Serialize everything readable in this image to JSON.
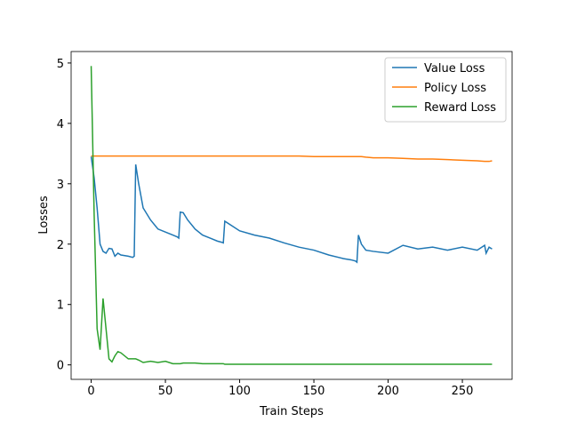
{
  "chart_data": {
    "type": "line",
    "x_label": "Train Steps",
    "y_label": "Losses",
    "x": [
      0,
      2,
      4,
      6,
      8,
      10,
      12,
      14,
      16,
      18,
      20,
      25,
      28,
      29,
      30,
      32,
      35,
      40,
      45,
      50,
      55,
      58,
      59,
      60,
      62,
      65,
      70,
      75,
      80,
      85,
      88,
      89,
      90,
      95,
      100,
      110,
      120,
      130,
      140,
      150,
      160,
      170,
      175,
      178,
      179,
      180,
      182,
      185,
      190,
      200,
      210,
      220,
      230,
      240,
      250,
      260,
      265,
      266,
      268,
      270
    ],
    "series": [
      {
        "name": "Value Loss",
        "color": "#1f77b4",
        "values": [
          3.45,
          3.1,
          2.6,
          2.0,
          1.88,
          1.85,
          1.93,
          1.92,
          1.8,
          1.85,
          1.82,
          1.8,
          1.78,
          1.8,
          3.32,
          3.0,
          2.6,
          2.4,
          2.25,
          2.2,
          2.15,
          2.12,
          2.1,
          2.53,
          2.52,
          2.4,
          2.25,
          2.15,
          2.1,
          2.05,
          2.03,
          2.02,
          2.38,
          2.3,
          2.22,
          2.15,
          2.1,
          2.02,
          1.95,
          1.9,
          1.82,
          1.76,
          1.74,
          1.72,
          1.7,
          2.15,
          2.0,
          1.9,
          1.88,
          1.85,
          1.98,
          1.92,
          1.95,
          1.9,
          1.95,
          1.9,
          1.98,
          1.85,
          1.95,
          1.92
        ]
      },
      {
        "name": "Policy Loss",
        "color": "#ff7f0e",
        "values": [
          3.46,
          3.46,
          3.46,
          3.46,
          3.46,
          3.46,
          3.46,
          3.46,
          3.46,
          3.46,
          3.46,
          3.46,
          3.46,
          3.46,
          3.46,
          3.46,
          3.46,
          3.46,
          3.46,
          3.46,
          3.46,
          3.46,
          3.46,
          3.46,
          3.46,
          3.46,
          3.46,
          3.46,
          3.46,
          3.46,
          3.46,
          3.46,
          3.46,
          3.46,
          3.46,
          3.46,
          3.46,
          3.46,
          3.46,
          3.45,
          3.45,
          3.45,
          3.45,
          3.45,
          3.45,
          3.45,
          3.45,
          3.44,
          3.43,
          3.43,
          3.42,
          3.41,
          3.41,
          3.4,
          3.39,
          3.38,
          3.37,
          3.37,
          3.37,
          3.38
        ]
      },
      {
        "name": "Reward Loss",
        "color": "#2ca02c",
        "values": [
          4.95,
          2.5,
          0.6,
          0.25,
          1.1,
          0.6,
          0.1,
          0.05,
          0.15,
          0.22,
          0.2,
          0.1,
          0.1,
          0.1,
          0.1,
          0.08,
          0.04,
          0.06,
          0.04,
          0.06,
          0.02,
          0.02,
          0.02,
          0.02,
          0.03,
          0.03,
          0.03,
          0.02,
          0.02,
          0.02,
          0.02,
          0.02,
          0.01,
          0.01,
          0.01,
          0.01,
          0.01,
          0.01,
          0.01,
          0.01,
          0.01,
          0.01,
          0.01,
          0.01,
          0.01,
          0.01,
          0.01,
          0.01,
          0.01,
          0.01,
          0.01,
          0.01,
          0.01,
          0.01,
          0.01,
          0.01,
          0.01,
          0.01,
          0.01,
          0.01
        ]
      }
    ],
    "xlim": [
      -13.5,
      283.5
    ],
    "xticks": [
      0,
      50,
      100,
      150,
      200,
      250
    ],
    "ylim": [
      -0.24,
      5.19
    ],
    "yticks": [
      0,
      1,
      2,
      3,
      4,
      5
    ],
    "legend": "upper right"
  }
}
